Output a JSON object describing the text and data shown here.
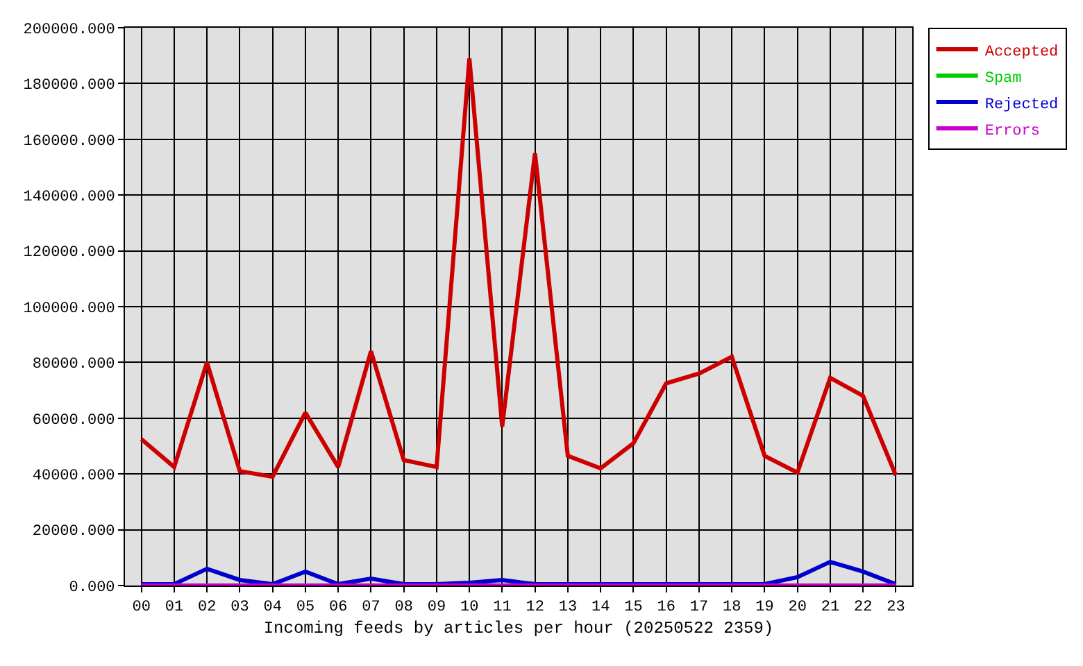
{
  "chart_data": {
    "type": "line",
    "xlabel": "Incoming feeds by articles per hour (20250522 2359)",
    "categories": [
      "00",
      "01",
      "02",
      "03",
      "04",
      "05",
      "06",
      "07",
      "08",
      "09",
      "10",
      "11",
      "12",
      "13",
      "14",
      "15",
      "16",
      "17",
      "18",
      "19",
      "20",
      "21",
      "22",
      "23"
    ],
    "series": [
      {
        "name": "Accepted",
        "color": "#cc0000",
        "values": [
          52500,
          42500,
          80000,
          41000,
          39000,
          62000,
          42500,
          84000,
          45000,
          42500,
          189000,
          57000,
          155000,
          46500,
          42000,
          51000,
          72500,
          76000,
          82000,
          46500,
          40500,
          74500,
          68000,
          39500
        ]
      },
      {
        "name": "Spam",
        "color": "#00cc00",
        "values": [
          null,
          null,
          null,
          null,
          null,
          null,
          null,
          null,
          null,
          null,
          null,
          null,
          null,
          null,
          null,
          null,
          null,
          null,
          null,
          null,
          null,
          null,
          null,
          null
        ]
      },
      {
        "name": "Rejected",
        "color": "#0000cc",
        "values": [
          500,
          500,
          6000,
          2000,
          500,
          5000,
          500,
          2500,
          500,
          500,
          1000,
          2000,
          500,
          500,
          500,
          500,
          500,
          500,
          500,
          500,
          3000,
          8500,
          5000,
          500
        ]
      },
      {
        "name": "Errors",
        "color": "#cc00cc",
        "values": [
          0,
          0,
          0,
          0,
          0,
          0,
          0,
          0,
          0,
          0,
          0,
          0,
          0,
          0,
          0,
          0,
          0,
          0,
          0,
          0,
          0,
          0,
          0,
          0
        ]
      }
    ],
    "ylim": [
      0,
      200000
    ],
    "yticks": [
      {
        "value": 0,
        "label": "0.000"
      },
      {
        "value": 20000,
        "label": "20000.000"
      },
      {
        "value": 40000,
        "label": "40000.000"
      },
      {
        "value": 60000,
        "label": "60000.000"
      },
      {
        "value": 80000,
        "label": "80000.000"
      },
      {
        "value": 100000,
        "label": "100000.000"
      },
      {
        "value": 120000,
        "label": "120000.000"
      },
      {
        "value": 140000,
        "label": "140000.000"
      },
      {
        "value": 160000,
        "label": "160000.000"
      },
      {
        "value": 180000,
        "label": "180000.000"
      },
      {
        "value": 200000,
        "label": "200000.000"
      }
    ],
    "grid": true,
    "legend": "top right",
    "marker": "none",
    "line_style": "solid"
  }
}
